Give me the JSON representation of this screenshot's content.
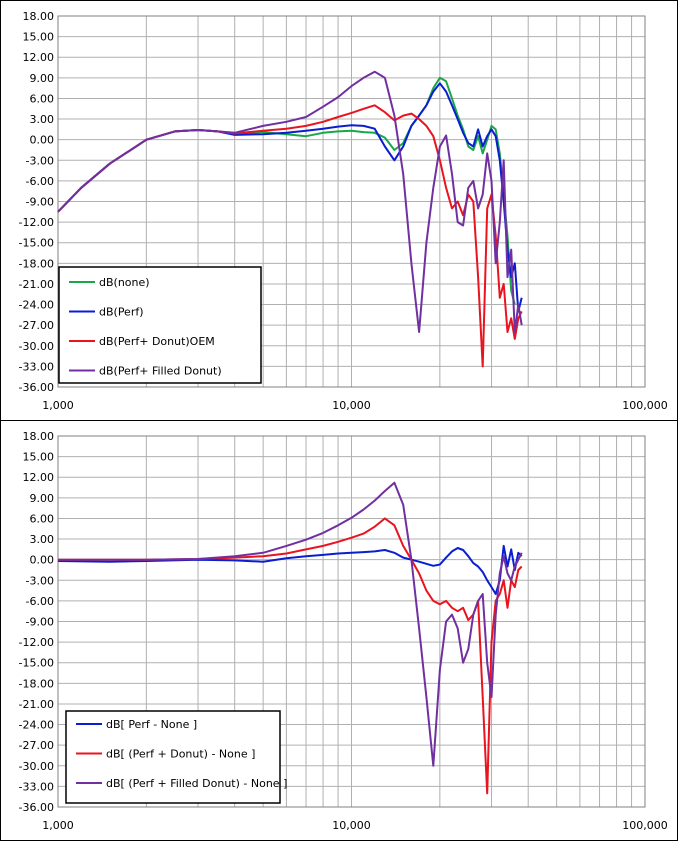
{
  "chart_data": [
    {
      "type": "line",
      "x_scale": "log",
      "xlim": [
        1000,
        100000
      ],
      "ylim": [
        -36,
        18
      ],
      "grid": true,
      "legend_position": "bottom-left",
      "x_ticks": [
        "1,000",
        "10,000",
        "100,000"
      ],
      "y_ticks": [
        "18.00",
        "15.00",
        "12.00",
        "9.00",
        "6.00",
        "3.00",
        "0.00",
        "-3.00",
        "-6.00",
        "-9.00",
        "-12.00",
        "-15.00",
        "-18.00",
        "-21.00",
        "-24.00",
        "-27.00",
        "-30.00",
        "-33.00",
        "-36.00"
      ],
      "series": [
        {
          "name": "dB(none)",
          "color": "#1aa64a",
          "x": [
            1000,
            1200,
            1500,
            2000,
            2500,
            3000,
            3500,
            4000,
            5000,
            6000,
            7000,
            8000,
            9000,
            10000,
            11000,
            12000,
            13000,
            14000,
            15000,
            16000,
            17000,
            18000,
            19000,
            20000,
            21000,
            22000,
            23000,
            24000,
            25000,
            26000,
            27000,
            28000,
            29000,
            30000,
            31000,
            32000,
            33000,
            34000,
            35000,
            36000
          ],
          "y": [
            -10.5,
            -7,
            -3.5,
            0,
            1.2,
            1.4,
            1.2,
            0.8,
            1.1,
            0.8,
            0.5,
            1.0,
            1.2,
            1.3,
            1.1,
            1.0,
            0.3,
            -1.5,
            -0.5,
            2.0,
            3.5,
            5.0,
            7.5,
            9.0,
            8.5,
            6.0,
            3.5,
            1.5,
            -1.0,
            -1.5,
            0.5,
            -2.0,
            0.0,
            2.0,
            1.5,
            -2.0,
            -8.0,
            -14.0,
            -22.0,
            -24.0
          ]
        },
        {
          "name": "dB(Perf)",
          "color": "#0a1ed0",
          "x": [
            1000,
            1200,
            1500,
            2000,
            2500,
            3000,
            3500,
            4000,
            5000,
            6000,
            7000,
            8000,
            9000,
            10000,
            11000,
            12000,
            13000,
            14000,
            15000,
            16000,
            17000,
            18000,
            19000,
            20000,
            21000,
            22000,
            23000,
            24000,
            25000,
            26000,
            27000,
            28000,
            29000,
            30000,
            31000,
            32000,
            33000,
            34000,
            35000,
            36000,
            37000,
            38000
          ],
          "y": [
            -10.5,
            -7,
            -3.5,
            0,
            1.2,
            1.4,
            1.2,
            0.7,
            0.8,
            1.0,
            1.3,
            1.6,
            1.9,
            2.1,
            2.0,
            1.6,
            -1.0,
            -3.0,
            -1.0,
            2.0,
            3.5,
            5.0,
            7.0,
            8.2,
            7.0,
            5.0,
            3.0,
            1.0,
            -0.5,
            -1.0,
            1.5,
            -1.0,
            0.5,
            1.5,
            0.5,
            -3.0,
            -9.0,
            -16.0,
            -20.0,
            -18.0,
            -25.0,
            -23.0
          ]
        },
        {
          "name": "dB(Perf+ Donut)OEM",
          "color": "#e8141e",
          "x": [
            1000,
            1200,
            1500,
            2000,
            2500,
            3000,
            3500,
            4000,
            5000,
            6000,
            7000,
            8000,
            9000,
            10000,
            11000,
            12000,
            13000,
            14000,
            15000,
            16000,
            17000,
            18000,
            19000,
            20000,
            21000,
            22000,
            23000,
            24000,
            25000,
            26000,
            27000,
            28000,
            29000,
            30000,
            31000,
            32000,
            33000,
            34000,
            35000,
            36000,
            37000,
            38000
          ],
          "y": [
            -10.5,
            -7,
            -3.5,
            0,
            1.2,
            1.4,
            1.2,
            0.9,
            1.3,
            1.6,
            2.0,
            2.6,
            3.3,
            3.9,
            4.5,
            5.0,
            4.0,
            2.8,
            3.5,
            3.8,
            3.0,
            2.0,
            0.5,
            -3.0,
            -7.0,
            -10.0,
            -9.0,
            -11.0,
            -8.0,
            -9.0,
            -20.0,
            -33.0,
            -10.0,
            -8.0,
            -14.0,
            -23.0,
            -21.0,
            -28.0,
            -26.0,
            -29.0,
            -26.0,
            -25.0
          ]
        },
        {
          "name": "dB(Perf+ Filled Donut)",
          "color": "#7030a0",
          "x": [
            1000,
            1200,
            1500,
            2000,
            2500,
            3000,
            3500,
            4000,
            5000,
            6000,
            7000,
            8000,
            9000,
            10000,
            11000,
            12000,
            13000,
            14000,
            15000,
            16000,
            17000,
            18000,
            19000,
            20000,
            21000,
            22000,
            23000,
            24000,
            25000,
            26000,
            27000,
            28000,
            29000,
            30000,
            31000,
            32000,
            33000,
            34000,
            35000,
            36000,
            37000,
            38000
          ],
          "y": [
            -10.5,
            -7,
            -3.5,
            0,
            1.2,
            1.4,
            1.2,
            1.0,
            2.0,
            2.6,
            3.3,
            4.8,
            6.2,
            7.8,
            9.0,
            9.9,
            9.0,
            3.5,
            -5.0,
            -18.0,
            -28.0,
            -15.0,
            -7.0,
            -1.0,
            0.6,
            -5.0,
            -12.0,
            -12.5,
            -7.0,
            -6.0,
            -10.0,
            -8.0,
            -2.0,
            -6.0,
            -18.0,
            -12.0,
            -3.0,
            -20.0,
            -16.0,
            -28.0,
            -24.0,
            -27.0
          ]
        }
      ]
    },
    {
      "type": "line",
      "x_scale": "log",
      "xlim": [
        1000,
        100000
      ],
      "ylim": [
        -36,
        18
      ],
      "grid": true,
      "legend_position": "bottom-left",
      "x_ticks": [
        "1,000",
        "10,000",
        "100,000"
      ],
      "y_ticks": [
        "18.00",
        "15.00",
        "12.00",
        "9.00",
        "6.00",
        "3.00",
        "0.00",
        "-3.00",
        "-6.00",
        "-9.00",
        "-12.00",
        "-15.00",
        "-18.00",
        "-21.00",
        "-24.00",
        "-27.00",
        "-30.00",
        "-33.00",
        "-36.00"
      ],
      "series": [
        {
          "name": "dB[ Perf - None ]",
          "color": "#0a1ed0",
          "x": [
            1000,
            1500,
            2000,
            3000,
            4000,
            5000,
            6000,
            7000,
            8000,
            9000,
            10000,
            11000,
            12000,
            13000,
            14000,
            15000,
            16000,
            17000,
            18000,
            19000,
            20000,
            21000,
            22000,
            23000,
            24000,
            25000,
            26000,
            27000,
            28000,
            29000,
            30000,
            31000,
            32000,
            33000,
            34000,
            35000,
            36000,
            37000,
            38000
          ],
          "y": [
            -0.2,
            -0.3,
            -0.2,
            0,
            -0.1,
            -0.3,
            0.2,
            0.5,
            0.7,
            0.9,
            1.0,
            1.1,
            1.2,
            1.4,
            1.0,
            0.3,
            0.0,
            -0.3,
            -0.6,
            -0.9,
            -0.7,
            0.3,
            1.2,
            1.7,
            1.4,
            0.5,
            -0.5,
            -1.0,
            -1.8,
            -3.0,
            -4.0,
            -5.0,
            -3.0,
            2.0,
            -1.0,
            1.5,
            -1.5,
            1.0,
            0.5
          ]
        },
        {
          "name": "dB[ (Perf + Donut) - None ]",
          "color": "#e8141e",
          "x": [
            1000,
            1500,
            2000,
            3000,
            4000,
            5000,
            6000,
            7000,
            8000,
            9000,
            10000,
            11000,
            12000,
            13000,
            14000,
            15000,
            16000,
            17000,
            18000,
            19000,
            20000,
            21000,
            22000,
            23000,
            24000,
            25000,
            26000,
            27000,
            28000,
            29000,
            30000,
            31000,
            32000,
            33000,
            34000,
            35000,
            36000,
            37000,
            38000
          ],
          "y": [
            0,
            0,
            0,
            0.1,
            0.3,
            0.5,
            0.9,
            1.5,
            2.0,
            2.6,
            3.2,
            3.8,
            4.8,
            6.0,
            5.0,
            2.0,
            0.0,
            -2.0,
            -4.5,
            -6.0,
            -6.5,
            -6.0,
            -7.0,
            -7.5,
            -7.0,
            -8.8,
            -8.0,
            -6.0,
            -20.0,
            -34.0,
            -12.0,
            -6.0,
            -5.0,
            -3.0,
            -7.0,
            -3.0,
            -4.0,
            -1.5,
            -1.0
          ]
        },
        {
          "name": "dB[ (Perf + Filled Donut) - None ]",
          "color": "#7030a0",
          "x": [
            1000,
            1500,
            2000,
            3000,
            4000,
            5000,
            6000,
            7000,
            8000,
            9000,
            10000,
            11000,
            12000,
            13000,
            14000,
            15000,
            16000,
            17000,
            18000,
            19000,
            20000,
            21000,
            22000,
            23000,
            24000,
            25000,
            26000,
            27000,
            28000,
            29000,
            30000,
            31000,
            32000,
            33000,
            34000,
            35000,
            36000,
            37000,
            38000
          ],
          "y": [
            0,
            0,
            0,
            0.1,
            0.5,
            1.0,
            2.0,
            2.9,
            3.9,
            5.0,
            6.1,
            7.3,
            8.6,
            10.0,
            11.2,
            8.0,
            0.0,
            -10.0,
            -20.0,
            -30.0,
            -16.0,
            -9.0,
            -8.0,
            -10.0,
            -15.0,
            -13.0,
            -8.0,
            -6.0,
            -5.0,
            -15.0,
            -20.0,
            -8.0,
            -2.0,
            0.5,
            -2.0,
            -3.0,
            -1.0,
            0.0,
            1.0
          ]
        }
      ]
    }
  ]
}
